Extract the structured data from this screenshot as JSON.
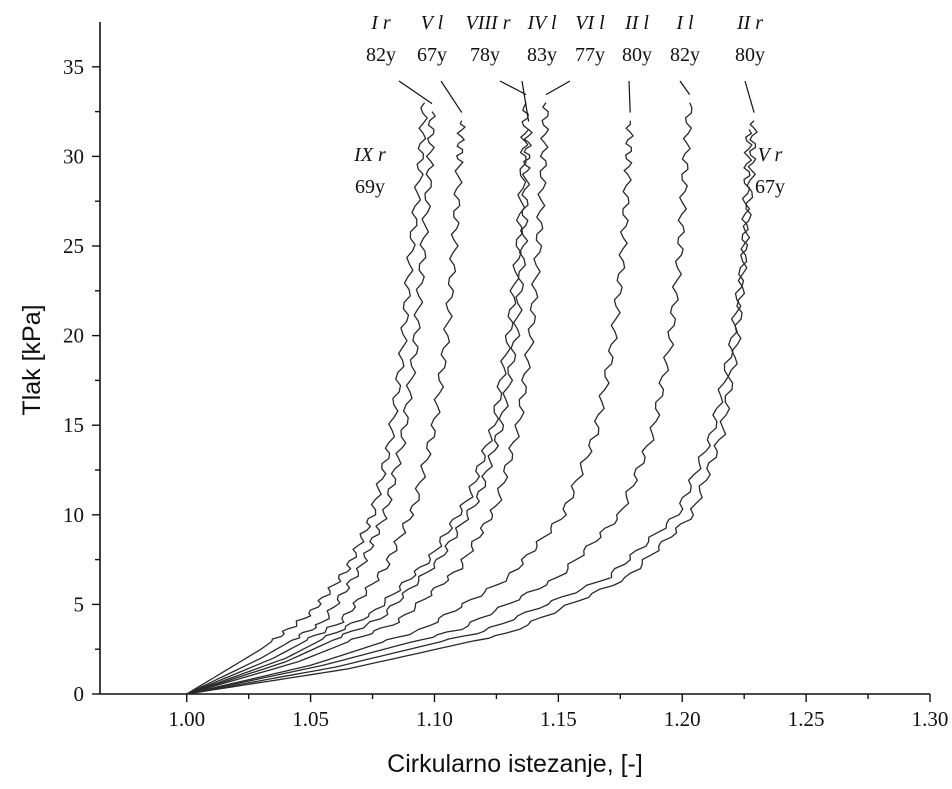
{
  "chart_data": {
    "type": "line",
    "xlabel": "Cirkularno istezanje, [-]",
    "ylabel": "Tlak [kPa]",
    "xlim": [
      0.965,
      1.3
    ],
    "ylim": [
      0,
      37.5
    ],
    "xticks": [
      "1.00",
      "1.05",
      "1.10",
      "1.15",
      "1.20",
      "1.25",
      "1.30"
    ],
    "yticks": [
      "0",
      "5",
      "10",
      "15",
      "20",
      "25",
      "30",
      "35"
    ],
    "grid": false,
    "legend": "none",
    "line_color": "#2a2a2a",
    "series": [
      {
        "name": "IX r",
        "age": "69y",
        "x": [
          1.0,
          1.03,
          1.05,
          1.065,
          1.075,
          1.082,
          1.087,
          1.09,
          1.094,
          1.096
        ],
        "y": [
          0,
          2.5,
          4.5,
          7,
          10,
          14,
          19,
          24,
          29,
          33
        ]
      },
      {
        "name": "I r",
        "age": "82y",
        "x": [
          1.0,
          1.03,
          1.055,
          1.07,
          1.08,
          1.087,
          1.092,
          1.095,
          1.098,
          1.099
        ],
        "y": [
          0,
          2,
          4,
          7,
          10,
          14,
          19,
          24,
          29,
          32.5
        ]
      },
      {
        "name": "V l",
        "age": "67y",
        "x": [
          1.0,
          1.035,
          1.062,
          1.08,
          1.092,
          1.1,
          1.105,
          1.108,
          1.11,
          1.111
        ],
        "y": [
          0,
          2,
          4,
          7,
          10.5,
          15,
          20,
          25,
          29.5,
          32
        ]
      },
      {
        "name": "VIII r",
        "age": "78y",
        "x": [
          1.0,
          1.04,
          1.075,
          1.098,
          1.114,
          1.124,
          1.13,
          1.134,
          1.136,
          1.137
        ],
        "y": [
          0,
          2,
          4.5,
          7.5,
          11,
          15,
          20,
          25,
          30,
          33
        ]
      },
      {
        "name": "IV l",
        "age": "83y",
        "x": [
          1.0,
          1.04,
          1.078,
          1.102,
          1.118,
          1.127,
          1.133,
          1.136,
          1.137,
          1.138
        ],
        "y": [
          0,
          1.8,
          4.2,
          7.5,
          11,
          15,
          20,
          25,
          29,
          31.5
        ]
      },
      {
        "name": "VI l",
        "age": "77y",
        "x": [
          1.0,
          1.045,
          1.085,
          1.11,
          1.125,
          1.134,
          1.139,
          1.142,
          1.144,
          1.145
        ],
        "y": [
          0,
          1.8,
          4,
          7,
          10.5,
          15,
          20,
          25,
          29.5,
          33
        ]
      },
      {
        "name": "II l",
        "age": "80y",
        "x": [
          1.0,
          1.05,
          1.095,
          1.13,
          1.152,
          1.165,
          1.172,
          1.176,
          1.178,
          1.179
        ],
        "y": [
          0,
          1.6,
          3.6,
          6.5,
          10,
          14.5,
          19.5,
          24.5,
          29,
          32
        ]
      },
      {
        "name": "I l",
        "age": "82y",
        "x": [
          1.0,
          1.055,
          1.11,
          1.15,
          1.175,
          1.188,
          1.195,
          1.199,
          1.201,
          1.203
        ],
        "y": [
          0,
          1.6,
          3.6,
          6.5,
          10,
          14.5,
          19.5,
          24.5,
          29,
          33
        ]
      },
      {
        "name": "II r",
        "age": "80y",
        "x": [
          1.0,
          1.06,
          1.12,
          1.17,
          1.198,
          1.212,
          1.22,
          1.225,
          1.228,
          1.229
        ],
        "y": [
          0,
          1.5,
          3.5,
          6.5,
          10,
          14.5,
          19.5,
          24.5,
          29,
          32
        ]
      },
      {
        "name": "V r",
        "age": "67y",
        "x": [
          1.0,
          1.065,
          1.13,
          1.178,
          1.204,
          1.216,
          1.222,
          1.225,
          1.226,
          1.227
        ],
        "y": [
          0,
          1.4,
          3.4,
          6.5,
          10,
          14.5,
          19.5,
          24.5,
          28.5,
          31.5
        ]
      }
    ]
  },
  "labels": [
    {
      "name": "I r",
      "age": "82y"
    },
    {
      "name": "V l",
      "age": "67y"
    },
    {
      "name": "VIII r",
      "age": "78y"
    },
    {
      "name": "IV l",
      "age": "83y"
    },
    {
      "name": "VI l",
      "age": "77y"
    },
    {
      "name": "II l",
      "age": "80y"
    },
    {
      "name": "I l",
      "age": "82y"
    },
    {
      "name": "II r",
      "age": "80y"
    },
    {
      "name": "IX r",
      "age": "69y"
    },
    {
      "name": "V r",
      "age": "67y"
    }
  ]
}
